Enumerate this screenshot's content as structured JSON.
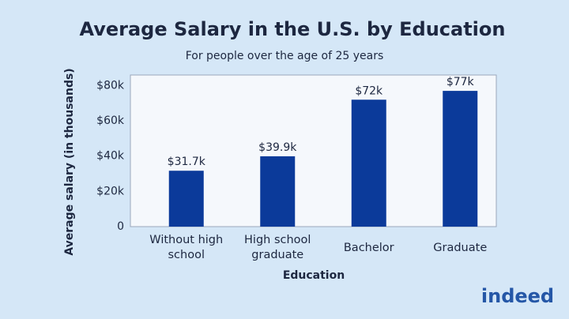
{
  "chart_data": {
    "type": "bar",
    "title": "Average Salary in the U.S. by Education",
    "subtitle": "For people over the age of 25 years",
    "y_label": "Average salary (in thousands)",
    "x_label": "Education",
    "categories": [
      "Without high school",
      "High school graduate",
      "Bachelor",
      "Graduate"
    ],
    "values": [
      31.7,
      39.9,
      72,
      77
    ],
    "value_labels": [
      "$31.7k",
      "$39.9k",
      "$72k",
      "$77k"
    ],
    "color": "#0b3a9a",
    "ylim": [
      0,
      86
    ],
    "yticks": [
      0,
      {
        "value": 20,
        "label": "$20k"
      },
      {
        "value": 40,
        "label": "$40k"
      },
      {
        "value": 60,
        "label": "$60k"
      },
      {
        "value": 80,
        "label": "$80k"
      }
    ],
    "grid": false,
    "logo": "indeed"
  }
}
